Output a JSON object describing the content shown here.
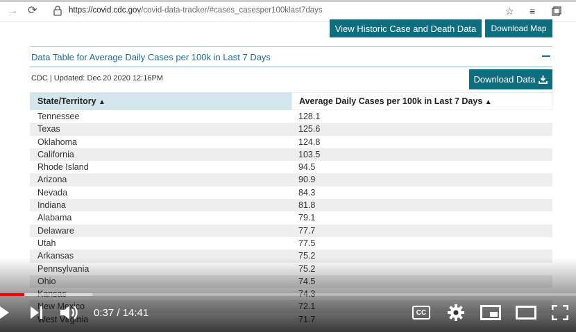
{
  "browser": {
    "url_host": "https://covid.cdc.gov",
    "url_path": "/covid-data-tracker/#cases_casesper100klast7days"
  },
  "page": {
    "btn_historic": "View Historic Case and Death Data",
    "btn_download_map": "Download Map",
    "section_title": "Data Table for Average Daily Cases per 100k in Last 7 Days",
    "updated_text": "CDC | Updated: Dec 20 2020 12:16PM",
    "btn_download_data": "Download Data",
    "col1_header": "State/Territory",
    "col2_header": "Average Daily Cases per 100k in Last 7 Days",
    "sort_glyph": "⬍",
    "rows": [
      {
        "state": "Tennessee",
        "value": "128.1"
      },
      {
        "state": "Texas",
        "value": "125.6"
      },
      {
        "state": "Oklahoma",
        "value": "124.8"
      },
      {
        "state": "California",
        "value": "103.5"
      },
      {
        "state": "Rhode Island",
        "value": "94.5"
      },
      {
        "state": "Arizona",
        "value": "90.9"
      },
      {
        "state": "Nevada",
        "value": "84.3"
      },
      {
        "state": "Indiana",
        "value": "81.8"
      },
      {
        "state": "Alabama",
        "value": "79.1"
      },
      {
        "state": "Delaware",
        "value": "77.7"
      },
      {
        "state": "Utah",
        "value": "77.5"
      },
      {
        "state": "Arkansas",
        "value": "75.2"
      },
      {
        "state": "Pennsylvania",
        "value": "75.2"
      },
      {
        "state": "Ohio",
        "value": "74.5"
      },
      {
        "state": "Kansas",
        "value": "74.3"
      },
      {
        "state": "New Mexico",
        "value": "72.1"
      },
      {
        "state": "West Virginia",
        "value": "71.7"
      }
    ]
  },
  "player": {
    "time_current": "0:37",
    "time_total": "14:41",
    "time_display": "0:37 / 14:41",
    "progress_played_fraction": 0.042,
    "progress_buffered_fraction": 0.16,
    "cc_label": "CC"
  },
  "colors": {
    "teal_button": "#0e6e7f",
    "link_blue": "#1f6a96",
    "header_bg": "#d3e6ec",
    "progress_red": "#ff0000"
  },
  "icons": [
    "back-icon",
    "refresh-icon",
    "lock-icon",
    "star-icon",
    "favorites-icon",
    "collections-icon",
    "download-icon",
    "play-icon",
    "next-icon",
    "volume-icon",
    "cc-icon",
    "settings-icon",
    "miniplayer-icon",
    "theater-icon",
    "fullscreen-icon"
  ]
}
